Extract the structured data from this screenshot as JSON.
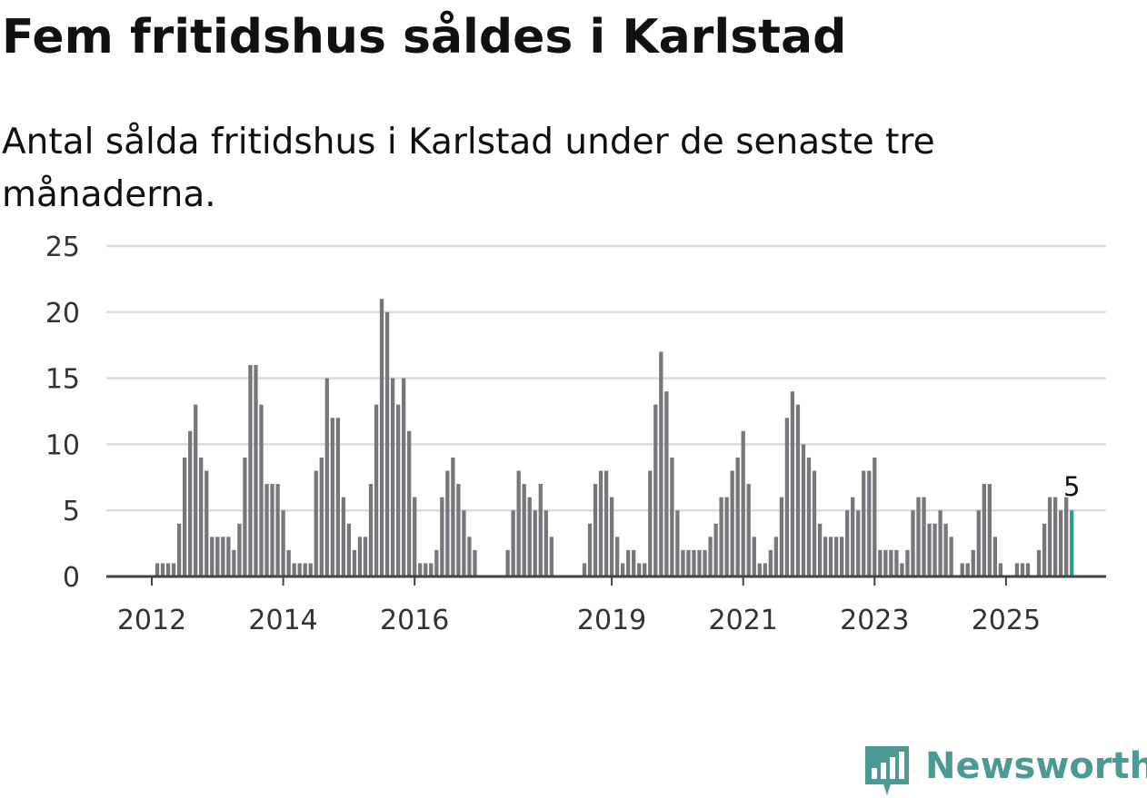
{
  "chart_data": {
    "type": "bar",
    "title": "Fem fritidshus såldes i Karlstad",
    "subtitle": "Antal sålda fritidshus i Karlstad under de senaste tre månaderna.",
    "xlabel": "",
    "ylabel": "",
    "ylim": [
      0,
      25
    ],
    "y_ticks": [
      "0",
      "5",
      "10",
      "15",
      "20",
      "25"
    ],
    "x_ticks": [
      {
        "label": "2012",
        "index": 0
      },
      {
        "label": "2014",
        "index": 24
      },
      {
        "label": "2016",
        "index": 48
      },
      {
        "label": "2019",
        "index": 84
      },
      {
        "label": "2021",
        "index": 108
      },
      {
        "label": "2023",
        "index": 132
      },
      {
        "label": "2025",
        "index": 156
      }
    ],
    "grid": true,
    "legend": "none",
    "frequency": "monthly",
    "start": "2012-01",
    "values": [
      0,
      1,
      1,
      1,
      1,
      4,
      9,
      11,
      13,
      9,
      8,
      3,
      3,
      3,
      3,
      2,
      4,
      9,
      16,
      16,
      13,
      7,
      7,
      7,
      5,
      2,
      1,
      1,
      1,
      1,
      8,
      9,
      15,
      12,
      12,
      6,
      4,
      2,
      3,
      3,
      7,
      13,
      21,
      20,
      15,
      13,
      15,
      11,
      6,
      1,
      1,
      1,
      2,
      6,
      8,
      9,
      7,
      5,
      3,
      2,
      0,
      0,
      0,
      0,
      0,
      2,
      5,
      8,
      7,
      6,
      5,
      7,
      5,
      3,
      0,
      0,
      0,
      0,
      0,
      1,
      4,
      7,
      8,
      8,
      6,
      3,
      1,
      2,
      2,
      1,
      1,
      8,
      13,
      17,
      14,
      9,
      5,
      2,
      2,
      2,
      2,
      2,
      3,
      4,
      6,
      6,
      8,
      9,
      11,
      7,
      3,
      1,
      1,
      2,
      3,
      6,
      12,
      14,
      13,
      10,
      9,
      8,
      4,
      3,
      3,
      3,
      3,
      5,
      6,
      5,
      8,
      8,
      9,
      2,
      2,
      2,
      2,
      1,
      2,
      5,
      6,
      6,
      4,
      4,
      5,
      4,
      3,
      0,
      1,
      1,
      2,
      5,
      7,
      7,
      3,
      1,
      0,
      0,
      1,
      1,
      1,
      0,
      2,
      4,
      6,
      6,
      5,
      6,
      5
    ],
    "highlight_last": true,
    "last_value_label": "5",
    "colors": {
      "bar": "#77767b",
      "highlight": "#2a9d95",
      "grid": "#dcdcdc",
      "baseline": "#444444",
      "tick_text": "#333333"
    }
  },
  "brand": {
    "name": "Newsworthy",
    "color": "#4d9a95"
  }
}
